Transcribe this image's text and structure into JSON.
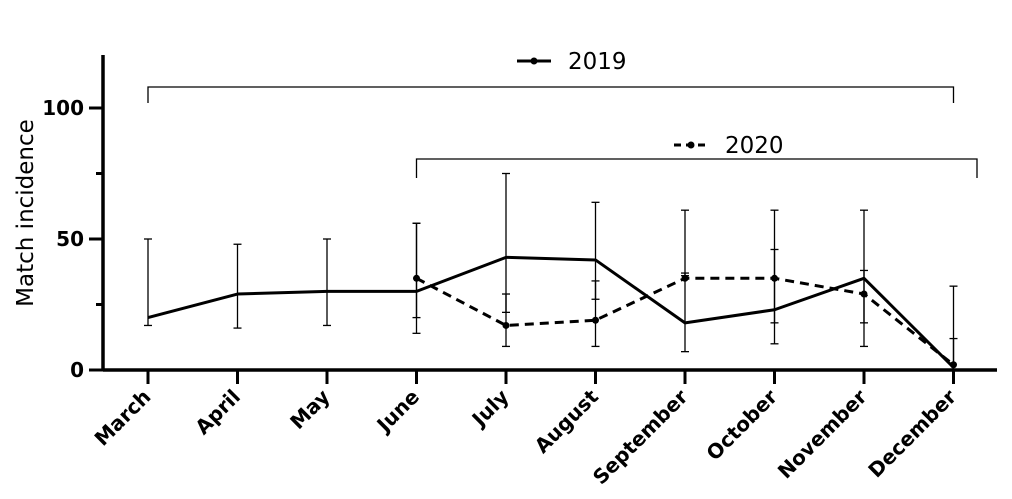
{
  "chart_data": {
    "type": "line",
    "title": "",
    "xlabel": "",
    "ylabel": "Match incidence",
    "ylim": [
      0,
      120
    ],
    "yticks": [
      0,
      50,
      100
    ],
    "categories": [
      "March",
      "April",
      "May",
      "June",
      "July",
      "August",
      "September",
      "October",
      "November",
      "December"
    ],
    "grid": false,
    "series": [
      {
        "name": "2019",
        "style": "solid",
        "color": "#000000",
        "values": [
          20,
          29,
          30,
          30,
          43,
          42,
          18,
          23,
          35,
          1
        ],
        "err_lower": [
          17,
          16,
          17,
          20,
          22,
          27,
          7,
          10,
          18,
          0
        ],
        "err_upper": [
          50,
          48,
          50,
          56,
          75,
          64,
          61,
          61,
          61,
          32
        ]
      },
      {
        "name": "2020",
        "style": "dashed",
        "color": "#000000",
        "values": [
          null,
          null,
          null,
          35,
          17,
          19,
          35,
          35,
          29,
          2
        ],
        "err_lower": [
          null,
          null,
          null,
          14,
          9,
          9,
          36,
          18,
          9,
          0
        ],
        "err_upper": [
          null,
          null,
          null,
          56,
          29,
          34,
          37,
          46,
          38,
          12
        ]
      }
    ],
    "legend": [
      {
        "label": "2019",
        "style": "solid",
        "span": [
          "March",
          "December"
        ]
      },
      {
        "label": "2020",
        "style": "dashed",
        "span": [
          "June",
          "December"
        ]
      }
    ]
  }
}
